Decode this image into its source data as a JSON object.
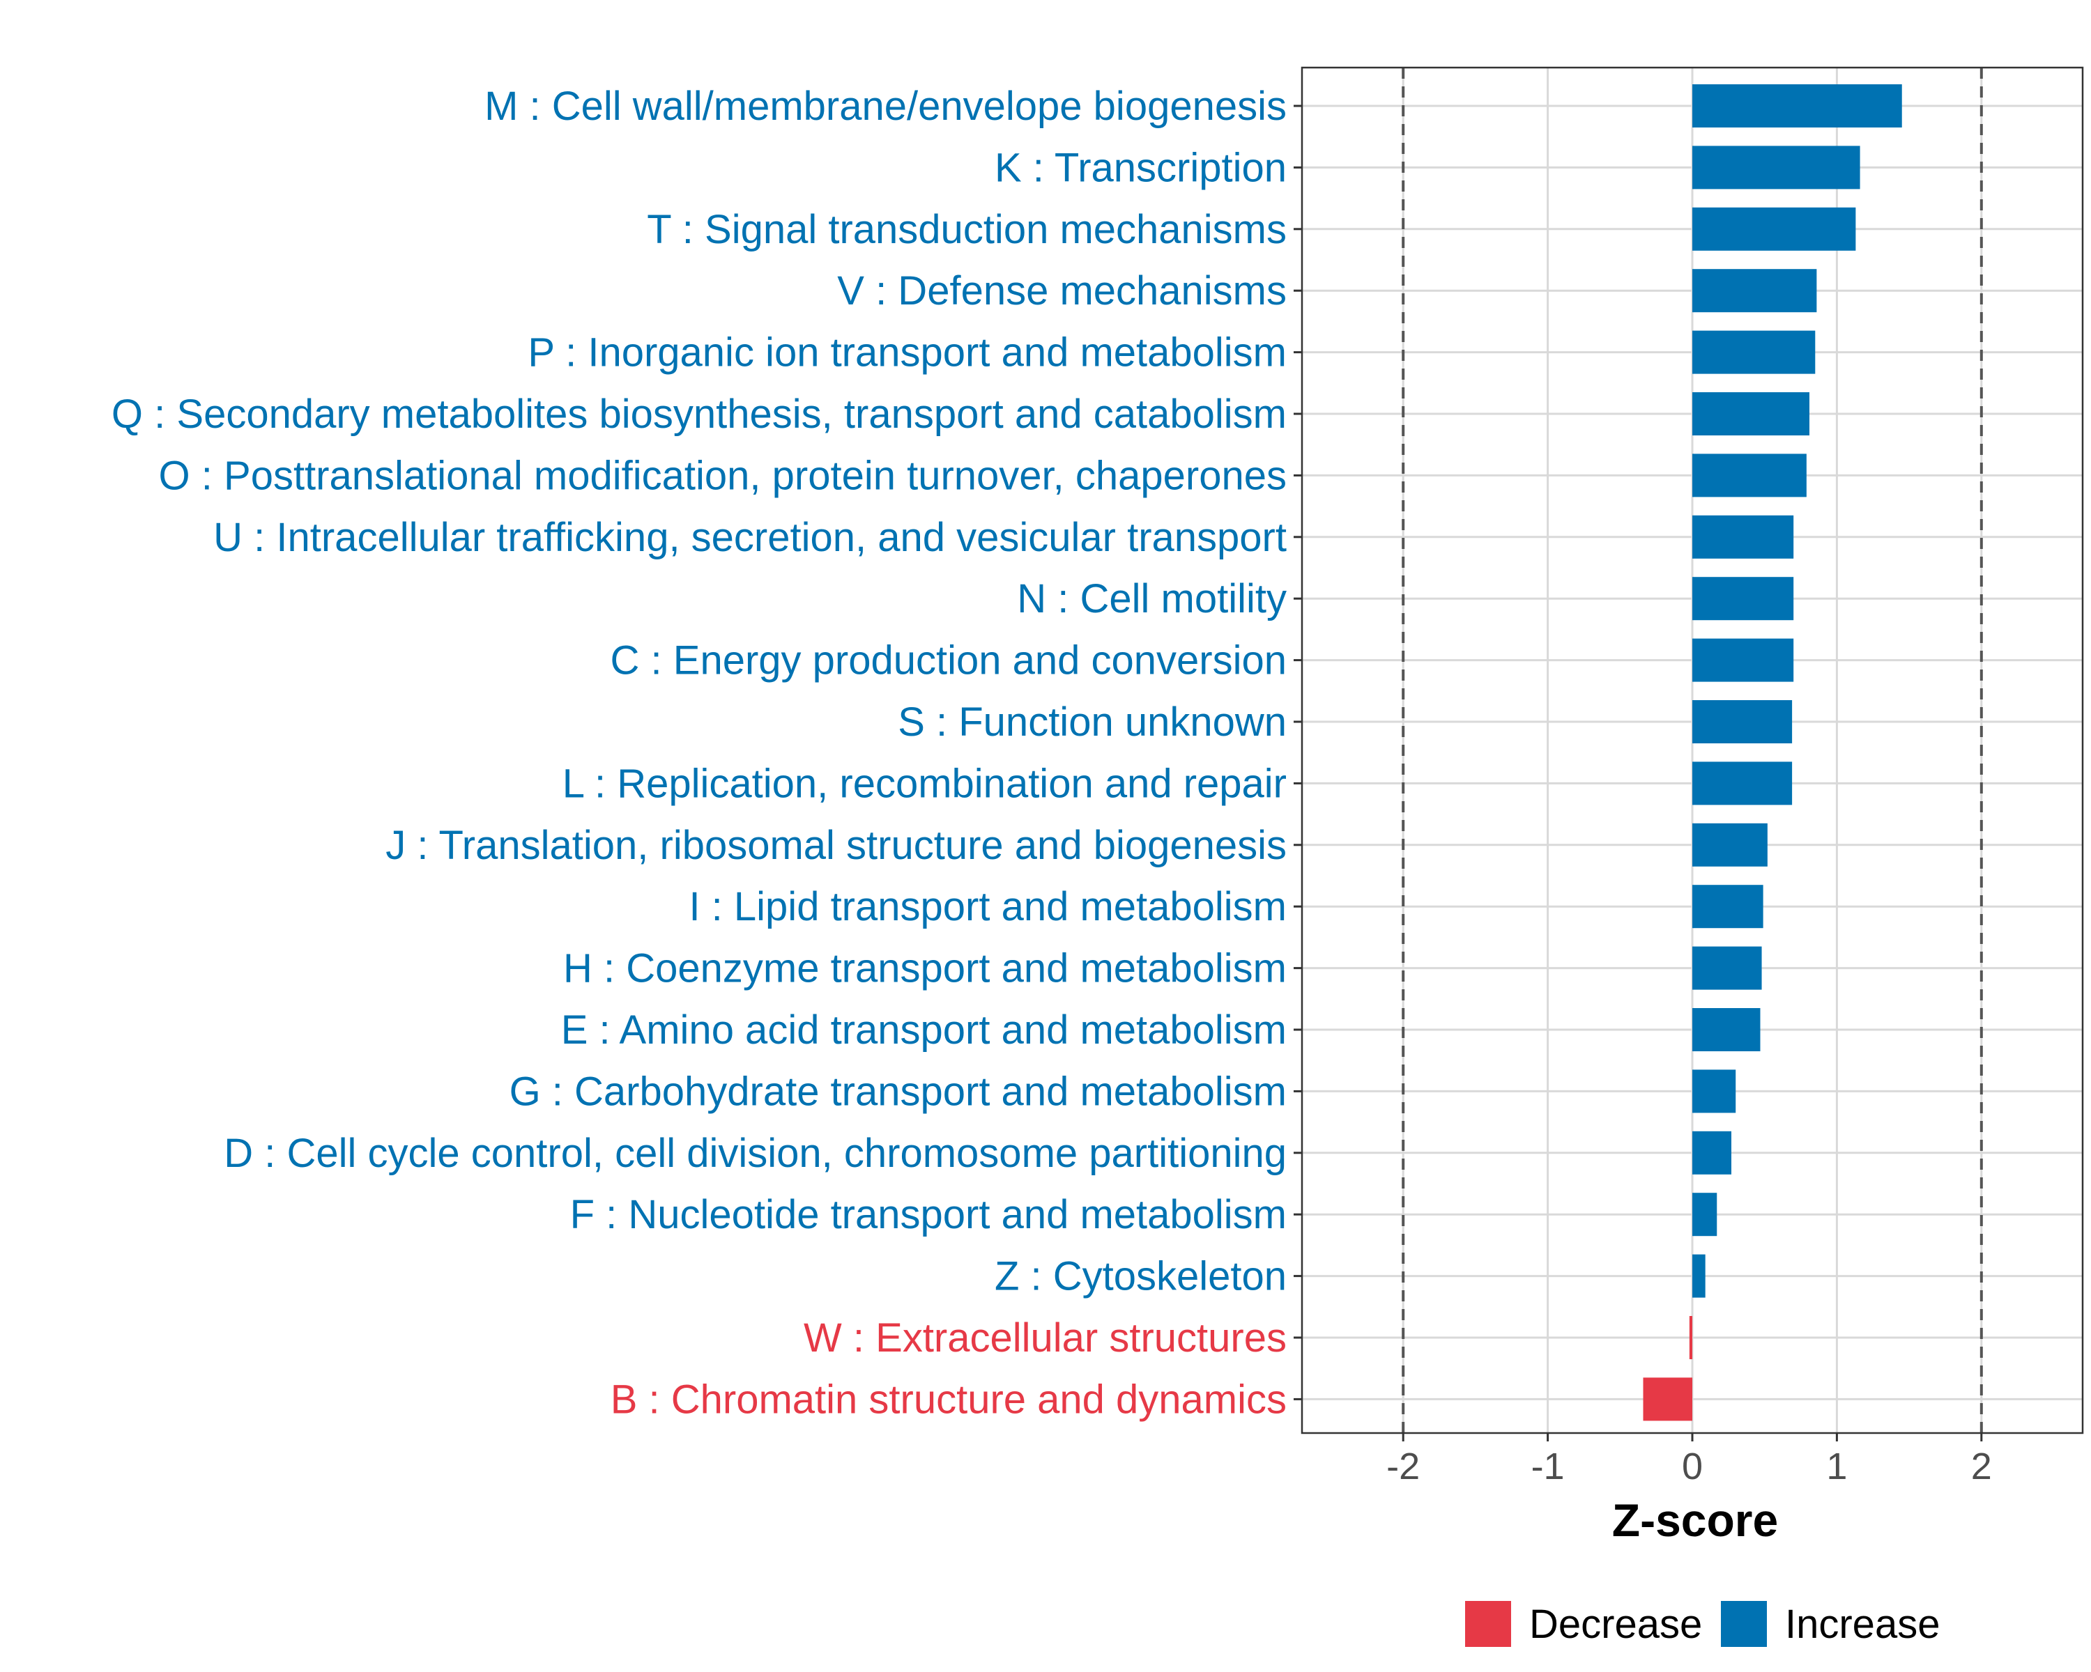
{
  "chart_data": {
    "type": "bar",
    "orientation": "horizontal",
    "xlabel": "Z-score",
    "ylabel": "",
    "xlim": [
      -2.7,
      2.7
    ],
    "xticks": [
      -2,
      -1,
      0,
      1,
      2
    ],
    "xtick_labels": [
      "-2",
      "-1",
      "0",
      "1",
      "2"
    ],
    "reference_lines": [
      -2,
      2
    ],
    "grid": true,
    "colors": {
      "Increase": "#0072b2",
      "Decrease": "#e63946"
    },
    "categories": [
      "M : Cell wall/membrane/envelope biogenesis",
      "K : Transcription",
      "T : Signal transduction mechanisms",
      "V : Defense mechanisms",
      "P : Inorganic ion transport and metabolism",
      "Q : Secondary metabolites biosynthesis, transport and catabolism",
      "O : Posttranslational modification, protein turnover, chaperones",
      "U : Intracellular trafficking, secretion, and vesicular transport",
      "N : Cell motility",
      "C : Energy production and conversion",
      "S : Function unknown",
      "L : Replication, recombination and repair",
      "J : Translation, ribosomal structure and biogenesis",
      "I : Lipid transport and metabolism",
      "H : Coenzyme transport and metabolism",
      "E : Amino acid transport and metabolism",
      "G : Carbohydrate transport and metabolism",
      "D : Cell cycle control, cell division, chromosome partitioning",
      "F : Nucleotide transport and metabolism",
      "Z : Cytoskeleton",
      "W : Extracellular structures",
      "B : Chromatin structure and dynamics"
    ],
    "values": [
      1.45,
      1.16,
      1.13,
      0.86,
      0.85,
      0.81,
      0.79,
      0.7,
      0.7,
      0.7,
      0.69,
      0.69,
      0.52,
      0.49,
      0.48,
      0.47,
      0.3,
      0.27,
      0.17,
      0.09,
      -0.02,
      -0.34
    ],
    "direction": [
      "Increase",
      "Increase",
      "Increase",
      "Increase",
      "Increase",
      "Increase",
      "Increase",
      "Increase",
      "Increase",
      "Increase",
      "Increase",
      "Increase",
      "Increase",
      "Increase",
      "Increase",
      "Increase",
      "Increase",
      "Increase",
      "Increase",
      "Increase",
      "Decrease",
      "Decrease"
    ],
    "legend": {
      "position": "bottom",
      "entries": [
        {
          "label": "Decrease",
          "color": "#e63946"
        },
        {
          "label": "Increase",
          "color": "#0072b2"
        }
      ]
    }
  }
}
